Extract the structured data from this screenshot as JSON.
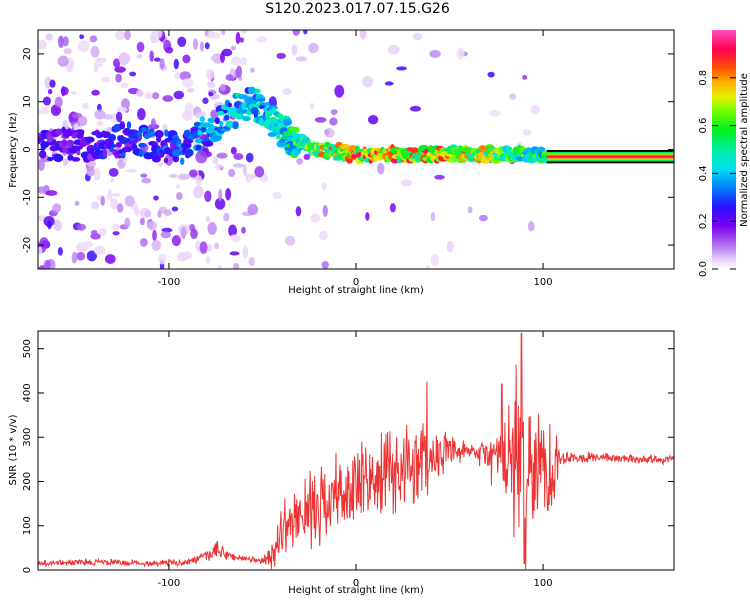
{
  "figure": {
    "title": "S120.2023.017.07.15.G26"
  },
  "chart_data": [
    {
      "type": "heatmap",
      "name": "spectrogram",
      "xlabel": "Height of straight line (km)",
      "ylabel": "Frequency (Hz)",
      "xlim": [
        -170,
        170
      ],
      "ylim": [
        -25,
        25
      ],
      "xticks": [
        -100,
        0,
        100
      ],
      "yticks": [
        -20,
        -10,
        0,
        10,
        20
      ],
      "colorbar": {
        "label": "Normalized spectral amplitude",
        "range": [
          0,
          1
        ],
        "ticks": [
          0.0,
          0.2,
          0.4,
          0.6,
          0.8
        ],
        "tick_labels": [
          "0.0",
          "0.2",
          "0.4",
          "0.6",
          "0.8"
        ],
        "colormap": "gist_ncar_r-like (white-violet-blue-cyan-green-yellow-red-magenta)"
      },
      "ridge": [
        {
          "x": -140,
          "freq": 1,
          "amp": 0.25
        },
        {
          "x": -120,
          "freq": 2,
          "amp": 0.3
        },
        {
          "x": -95,
          "freq": 0,
          "amp": 0.35
        },
        {
          "x": -80,
          "freq": 4,
          "amp": 0.4
        },
        {
          "x": -65,
          "freq": 8,
          "amp": 0.45
        },
        {
          "x": -55,
          "freq": 10,
          "amp": 0.5
        },
        {
          "x": -45,
          "freq": 6,
          "amp": 0.5
        },
        {
          "x": -35,
          "freq": 2,
          "amp": 0.55
        },
        {
          "x": -20,
          "freq": 0,
          "amp": 0.75
        },
        {
          "x": 0,
          "freq": -1,
          "amp": 0.85
        },
        {
          "x": 20,
          "freq": -1,
          "amp": 0.85
        },
        {
          "x": 50,
          "freq": -1,
          "amp": 0.85
        },
        {
          "x": 80,
          "freq": -1,
          "amp": 0.7
        },
        {
          "x": 100,
          "freq": -1,
          "amp": 0.6
        },
        {
          "x": 170,
          "freq": -1.5,
          "amp": 0.95
        }
      ],
      "steady_band": {
        "x_start": 102,
        "x_end": 170,
        "freq": -1.5,
        "amp": 0.95
      }
    },
    {
      "type": "line",
      "name": "snr",
      "xlabel": "Height of straight line (km)",
      "ylabel": "SNR (10 * v/v)",
      "xlim": [
        -170,
        170
      ],
      "ylim": [
        0,
        540
      ],
      "xticks": [
        -100,
        0,
        100
      ],
      "yticks": [
        0,
        100,
        200,
        300,
        400,
        500
      ],
      "color": "#ee3333",
      "series": [
        {
          "name": "SNR",
          "x": [
            -170,
            -140,
            -110,
            -90,
            -80,
            -75,
            -70,
            -60,
            -50,
            -45,
            -40,
            -35,
            -30,
            -20,
            -10,
            0,
            10,
            20,
            30,
            40,
            50,
            60,
            70,
            80,
            85,
            90,
            95,
            100,
            105,
            110,
            130,
            150,
            170
          ],
          "y_mean": [
            15,
            18,
            15,
            18,
            30,
            45,
            35,
            25,
            20,
            30,
            90,
            110,
            120,
            150,
            170,
            185,
            200,
            220,
            240,
            260,
            265,
            265,
            260,
            255,
            250,
            240,
            230,
            230,
            235,
            255,
            255,
            250,
            250
          ],
          "y_amp": [
            8,
            10,
            8,
            10,
            15,
            25,
            15,
            10,
            8,
            40,
            60,
            80,
            90,
            100,
            110,
            120,
            110,
            120,
            130,
            90,
            40,
            25,
            50,
            140,
            230,
            280,
            200,
            160,
            150,
            20,
            12,
            12,
            12
          ],
          "peaks": [
            {
              "x": 88.5,
              "y": 535
            },
            {
              "x": 90,
              "y": 15
            },
            {
              "x": 38,
              "y": 425
            },
            {
              "x": 78,
              "y": 420
            }
          ]
        }
      ]
    }
  ]
}
